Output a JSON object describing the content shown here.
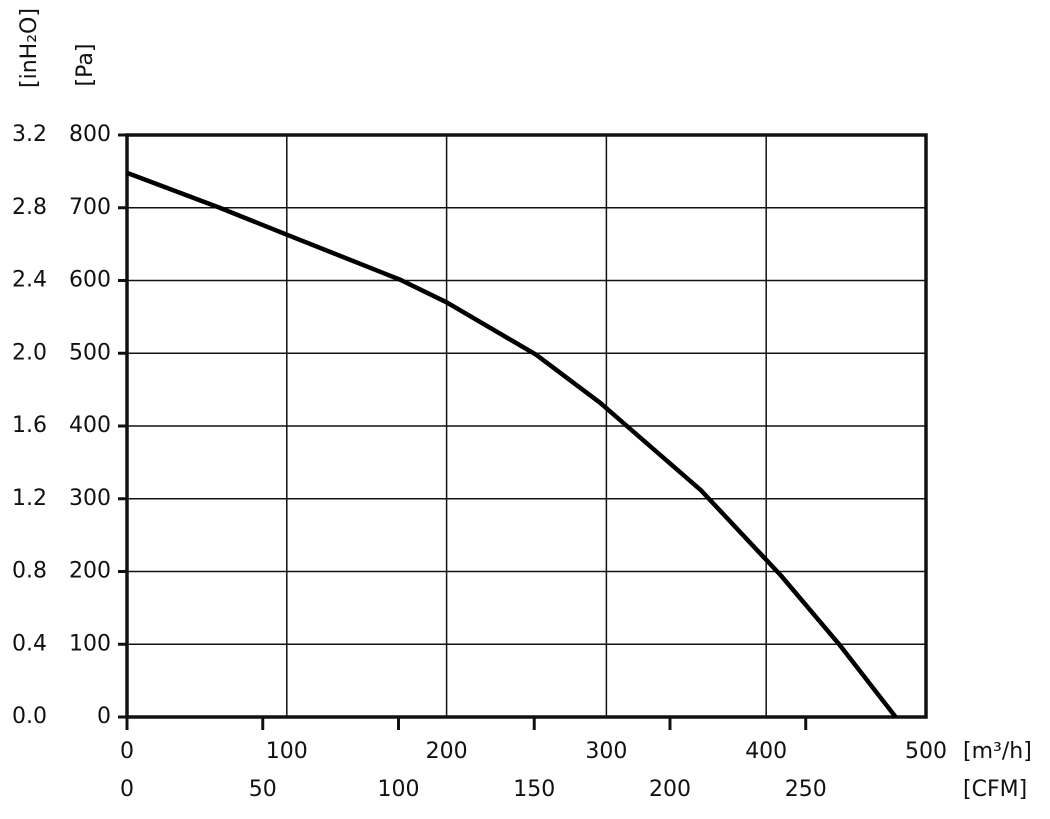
{
  "chart_data": {
    "type": "line",
    "y_label": "[Pa]",
    "y2_label": "[inH₂O]",
    "x_label": "[m³/h]",
    "x2_label": "[CFM]",
    "x": [
      0,
      58,
      100,
      171,
      200,
      256,
      296,
      359,
      409,
      446,
      481
    ],
    "series": [
      {
        "color": "#000000",
        "values": [
          748,
          700,
          663,
          601,
          570,
          498,
          432,
          312,
          195,
          99,
          0
        ]
      }
    ],
    "xlim": [
      0,
      500
    ],
    "xticks": [
      0,
      100,
      200,
      300,
      400,
      500
    ],
    "x2lim": [
      0,
      294.3
    ],
    "x2ticks": [
      0,
      50,
      100,
      150,
      200,
      250
    ],
    "ylim": [
      0,
      800
    ],
    "yticks": [
      0,
      100,
      200,
      300,
      400,
      500,
      600,
      700,
      800
    ],
    "y2lim": [
      0,
      3.2
    ],
    "y2ticks": [
      {
        "value": 0,
        "label": "0.0"
      },
      0.4,
      0.8,
      1.2,
      1.6,
      {
        "value": 2,
        "label": "2.0"
      },
      2.4,
      2.8,
      3.2
    ],
    "grid": true
  }
}
